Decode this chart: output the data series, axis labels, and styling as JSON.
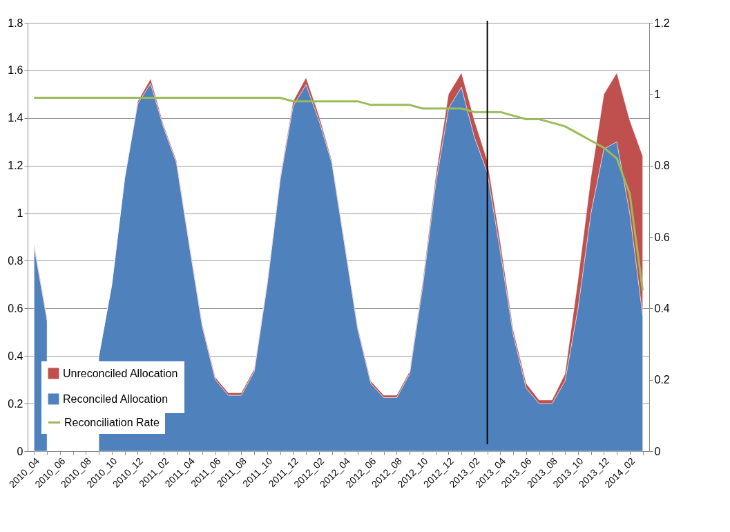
{
  "chart_data": {
    "type": "area",
    "stacked": true,
    "categories": [
      "2010_04",
      null,
      "2010_06",
      null,
      "2010_08",
      null,
      "2010_10",
      null,
      "2010_12",
      null,
      "2011_02",
      null,
      "2011_04",
      null,
      "2011_06",
      null,
      "2011_08",
      null,
      "2011_10",
      null,
      "2011_12",
      null,
      "2012_02",
      null,
      "2012_04",
      null,
      "2012_06",
      null,
      "2012_08",
      null,
      "2012_10",
      null,
      "2012_12",
      null,
      "2013_02",
      null,
      "2013_04",
      null,
      "2013_06",
      null,
      "2013_08",
      null,
      "2013_10",
      null,
      "2013_12",
      null,
      "2014_02",
      null
    ],
    "series": [
      {
        "name": "Reconciled Allocation",
        "color": "#4f81bd",
        "values": [
          0.86,
          0.55,
          null,
          null,
          null,
          0.4,
          0.7,
          1.15,
          1.46,
          1.545,
          1.36,
          1.21,
          0.86,
          0.52,
          0.3,
          0.235,
          0.235,
          0.335,
          0.7,
          1.14,
          1.45,
          1.54,
          1.39,
          1.21,
          0.86,
          0.51,
          0.285,
          0.225,
          0.225,
          0.325,
          0.69,
          1.12,
          1.44,
          1.53,
          1.32,
          1.17,
          0.84,
          0.49,
          0.265,
          0.2,
          0.2,
          0.295,
          0.6,
          1.0,
          1.27,
          1.3,
          1.0,
          0.57
        ]
      },
      {
        "name": "Unreconciled Allocation",
        "color": "#c0504d",
        "values": [
          0.01,
          0.01,
          null,
          null,
          null,
          0,
          0,
          0,
          0.01,
          0.02,
          0.01,
          0.01,
          0.01,
          0.01,
          0.01,
          0.01,
          0.01,
          0.01,
          0.01,
          0.01,
          0.02,
          0.03,
          0.02,
          0.01,
          0.01,
          0.01,
          0.01,
          0.01,
          0.01,
          0.01,
          0.02,
          0.03,
          0.06,
          0.06,
          0.07,
          0.05,
          0.04,
          0.02,
          0.02,
          0.015,
          0.015,
          0.03,
          0.12,
          0.15,
          0.23,
          0.29,
          0.39,
          0.67
        ]
      },
      {
        "name": "Reconciliation Rate",
        "color": "#9bbb59",
        "type": "line",
        "axis": "y2",
        "values": [
          0.99,
          0.99,
          0.99,
          0.99,
          0.99,
          0.99,
          0.99,
          0.99,
          0.99,
          0.99,
          0.99,
          0.99,
          0.99,
          0.99,
          0.99,
          0.99,
          0.99,
          0.99,
          0.99,
          0.99,
          0.98,
          0.98,
          0.98,
          0.98,
          0.98,
          0.98,
          0.97,
          0.97,
          0.97,
          0.97,
          0.96,
          0.96,
          0.96,
          0.96,
          0.95,
          0.95,
          0.95,
          0.94,
          0.93,
          0.93,
          0.92,
          0.91,
          0.89,
          0.87,
          0.85,
          0.82,
          0.72,
          0.45
        ]
      }
    ],
    "ylim": [
      0,
      1.8
    ],
    "yticks": [
      0,
      0.2,
      0.4,
      0.6,
      0.8,
      1,
      1.2,
      1.4,
      1.6,
      1.8
    ],
    "y2lim": [
      0,
      1.2
    ],
    "y2ticks": [
      0,
      0.2,
      0.4,
      0.6,
      0.8,
      1,
      1.2
    ],
    "grid": "y",
    "legend": "bottom left",
    "marker": "none",
    "line_style": "solid"
  }
}
